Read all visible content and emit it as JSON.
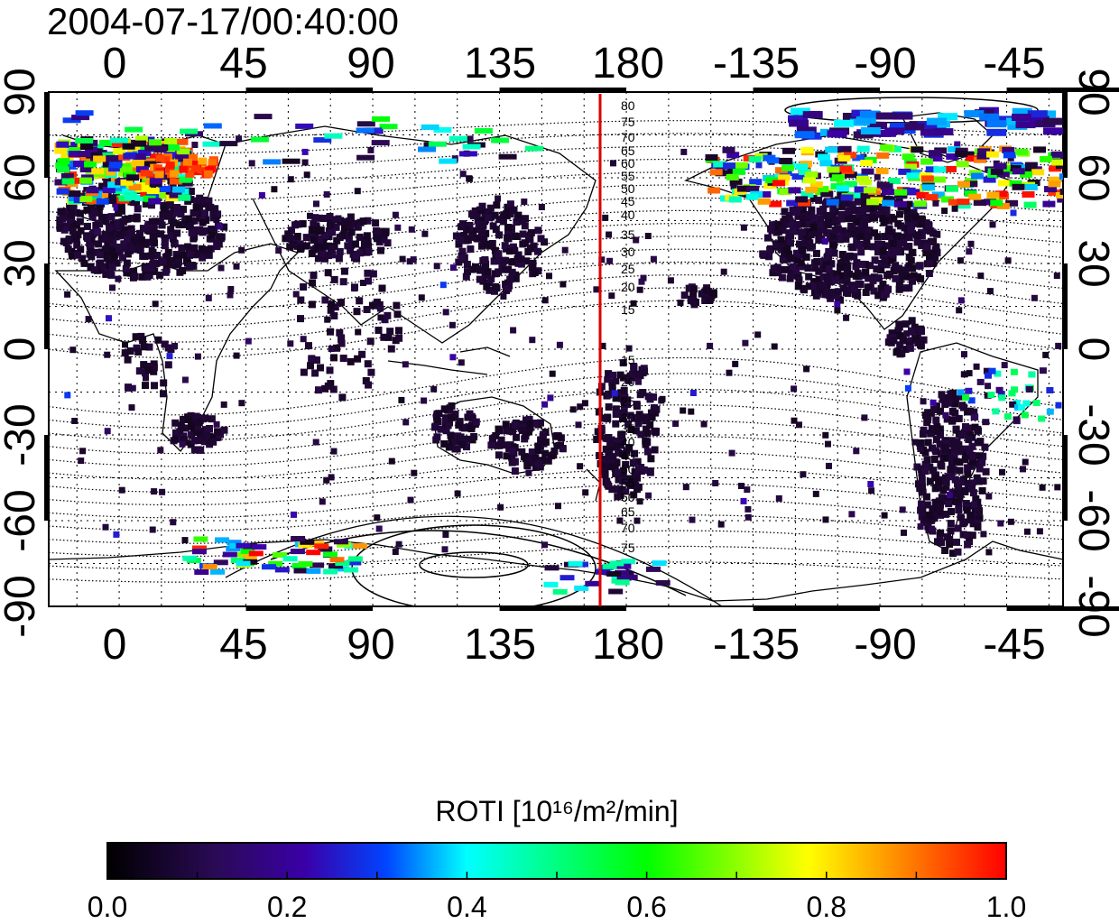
{
  "map": {
    "title": "2004-07-17/00:40:00",
    "projection": "equirectangular",
    "lon_ticks_bottom": [
      "0",
      "45",
      "90",
      "135",
      "180",
      "-135",
      "-90",
      "-45"
    ],
    "lon_ticks_top": [
      "0",
      "45",
      "90",
      "135",
      "180",
      "-135",
      "-90",
      "-45"
    ],
    "lat_ticks_left": [
      "90",
      "60",
      "30",
      "0",
      "-30",
      "-60",
      "-90"
    ],
    "lat_ticks_right": [
      "90",
      "60",
      "30",
      "0",
      "-30",
      "-60",
      "-90"
    ],
    "meridian_marker_lon": 170,
    "meridian_marker_color": "#dd0000",
    "contour_labels_north": [
      "80",
      "75",
      "70",
      "65",
      "60",
      "55",
      "50",
      "45",
      "40",
      "35",
      "30",
      "25",
      "20",
      "15"
    ],
    "contour_labels_south": [
      "15",
      "20",
      "25",
      "30",
      "35",
      "40",
      "45",
      "50",
      "55",
      "60",
      "65",
      "70",
      "75"
    ],
    "grid": "dotted"
  },
  "colorbar": {
    "label": "ROTI  [10¹⁶/m²/min]",
    "tick_labels": [
      "0.0",
      "0.2",
      "0.4",
      "0.6",
      "0.8",
      "1.0"
    ],
    "range": [
      0.0,
      1.0
    ],
    "colormap": [
      "#000000",
      "#3d0070",
      "#0000ff",
      "#00ffff",
      "#00ff00",
      "#ffff00",
      "#ff0000"
    ]
  }
}
